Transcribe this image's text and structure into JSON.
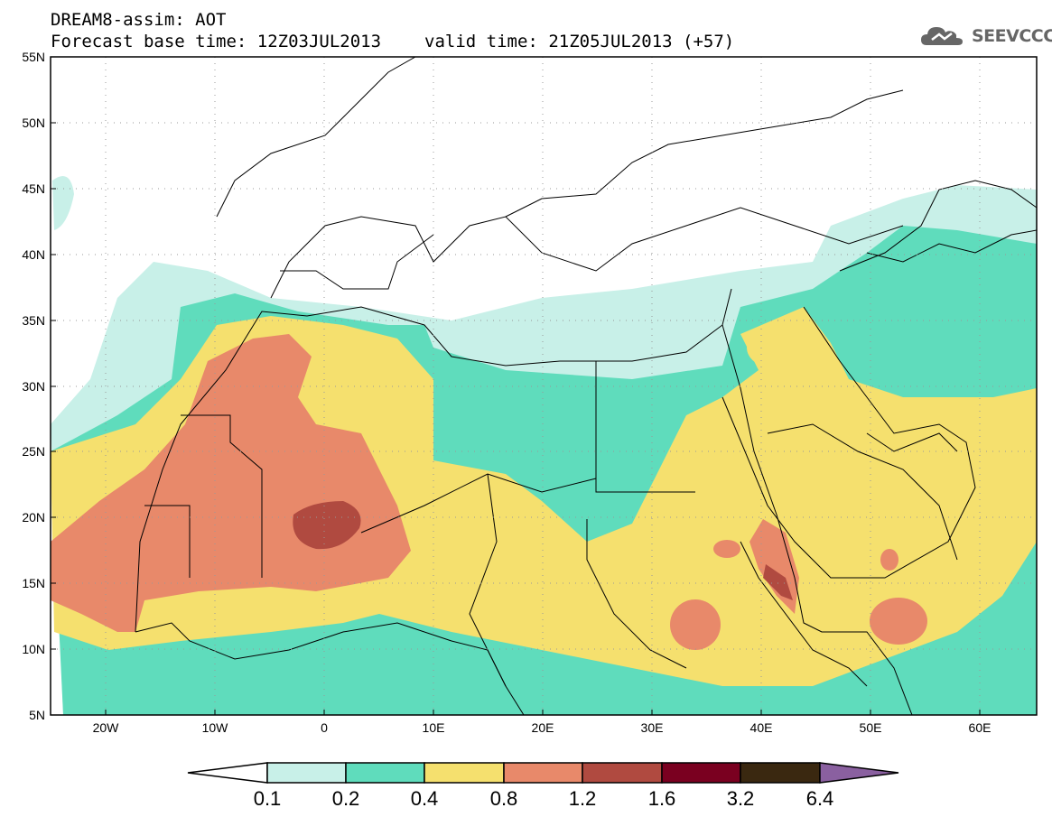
{
  "header": {
    "title_line1": "DREAM8-assim: AOT",
    "base_time": "Forecast base time: 12Z03JUL2013",
    "valid_time": "valid time: 21Z05JUL2013 (+57)"
  },
  "logo": {
    "text": "SEEVCCC",
    "icon": "cloud-icon"
  },
  "map": {
    "lon_labels": [
      "20W",
      "10W",
      "0",
      "10E",
      "20E",
      "30E",
      "40E",
      "50E",
      "60E"
    ],
    "lat_labels": [
      "55N",
      "50N",
      "45N",
      "40N",
      "35N",
      "30N",
      "25N",
      "20N",
      "15N",
      "10N",
      "5N"
    ],
    "lon_range": [
      -25,
      65
    ],
    "lat_range": [
      5,
      55
    ],
    "gridlines": "dotted"
  },
  "colorbar": {
    "labels": [
      "0.1",
      "0.2",
      "0.4",
      "0.8",
      "1.2",
      "1.6",
      "3.2",
      "6.4"
    ],
    "colors": [
      "#ffffff",
      "#c8f0e8",
      "#5fdcbc",
      "#f5e06e",
      "#e8896a",
      "#b04a40",
      "#7a0020",
      "#3a2810",
      "#8a60a0"
    ]
  },
  "colors": {
    "lt01": "#ffffff",
    "c01_02": "#c8f0e8",
    "c02_04": "#5fdcbc",
    "c04_08": "#f5e06e",
    "c08_12": "#e8896a",
    "c12_16": "#b04a40"
  }
}
